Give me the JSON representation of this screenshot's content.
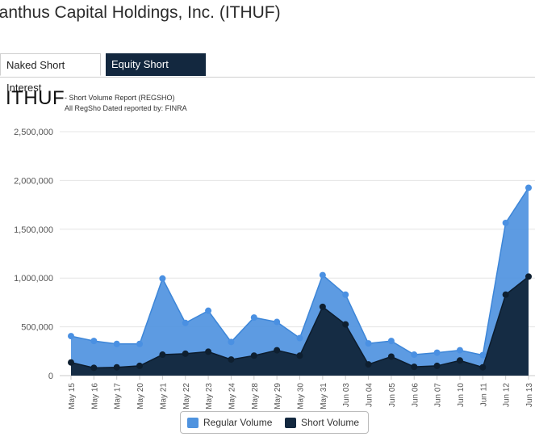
{
  "page": {
    "title": "lanthus Capital Holdings, Inc. (ITHUF)",
    "tabs": [
      {
        "label": "Naked Short Interest",
        "active": false
      },
      {
        "label": "Equity Short Interest",
        "active": true
      }
    ],
    "ticker": "ITHUF",
    "report_line1": "- Short Volume Report (REGSHO)",
    "report_line2": "All RegSho Dated reported by: FINRA"
  },
  "colors": {
    "regular": "#4f93df",
    "short": "#13283f",
    "tab_active_bg": "#13283f"
  },
  "chart_data": {
    "type": "area",
    "title": "",
    "xlabel": "",
    "ylabel": "",
    "categories": [
      "May 15",
      "May 16",
      "May 17",
      "May 20",
      "May 21",
      "May 22",
      "May 23",
      "May 24",
      "May 28",
      "May 29",
      "May 30",
      "May 31",
      "Jun 03",
      "Jun 04",
      "Jun 05",
      "Jun 06",
      "Jun 07",
      "Jun 10",
      "Jun 11",
      "Jun 12",
      "Jun 13"
    ],
    "series": [
      {
        "name": "Regular Volume",
        "color": "#4f93df",
        "values": [
          405000,
          355000,
          325000,
          325000,
          995000,
          540000,
          665000,
          345000,
          595000,
          550000,
          385000,
          1030000,
          830000,
          330000,
          355000,
          215000,
          235000,
          260000,
          210000,
          1565000,
          1925000
        ]
      },
      {
        "name": "Short Volume",
        "color": "#13283f",
        "values": [
          135000,
          80000,
          85000,
          100000,
          215000,
          225000,
          245000,
          165000,
          205000,
          260000,
          205000,
          705000,
          525000,
          115000,
          195000,
          90000,
          100000,
          155000,
          85000,
          830000,
          1015000
        ]
      }
    ],
    "ylim": [
      0,
      2500000
    ],
    "yticks": [
      "0",
      "500,000",
      "1,000,000",
      "1,500,000",
      "2,000,000",
      "2,500,000"
    ],
    "grid": true,
    "legend": "bottom-center"
  }
}
